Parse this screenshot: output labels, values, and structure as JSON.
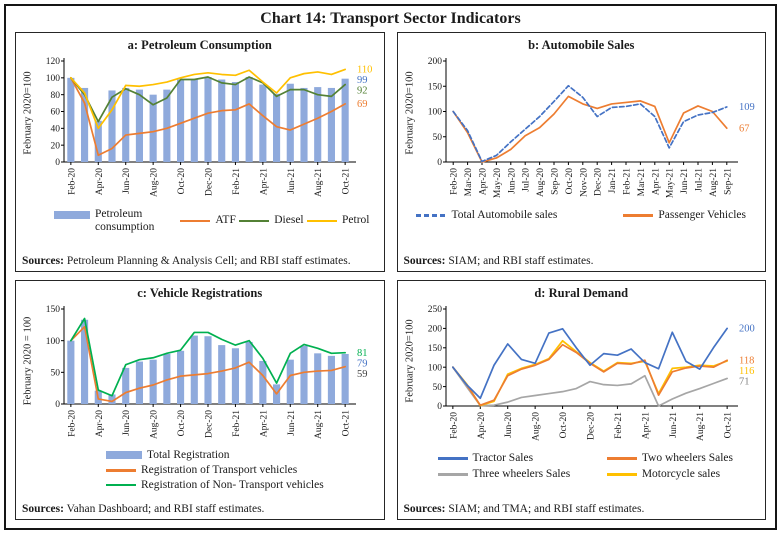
{
  "figure": {
    "title": "Chart 14: Transport Sector Indicators"
  },
  "chart_data": [
    {
      "id": "a",
      "type": "bar+line",
      "title": "a: Petroleum Consumption",
      "ylabel": "February 2020=100",
      "ylim": [
        0,
        120
      ],
      "ystep": 20,
      "xtick_step": 2,
      "legend_layout": "lay-a",
      "legend_order": [
        0,
        1,
        2,
        3
      ],
      "categories": [
        "Feb-20",
        "Mar-20",
        "Apr-20",
        "May-20",
        "Jun-20",
        "Jul-20",
        "Aug-20",
        "Sep-20",
        "Oct-20",
        "Nov-20",
        "Dec-20",
        "Jan-21",
        "Feb-21",
        "Mar-21",
        "Apr-21",
        "May-21",
        "Jun-21",
        "Jul-21",
        "Aug-21",
        "Sep-21",
        "Oct-21"
      ],
      "series": [
        {
          "name": "Petroleum consumption",
          "type": "bar",
          "color": "#8FAADC",
          "end_label": "99",
          "end_label_color": "#4472C4",
          "values": [
            100,
            88,
            49,
            85,
            88,
            86,
            80,
            86,
            98,
            98,
            101,
            98,
            95,
            101,
            92,
            81,
            93,
            88,
            89,
            88,
            99
          ]
        },
        {
          "name": "ATF",
          "type": "line",
          "color": "#ED7D31",
          "end_label": "69",
          "values": [
            100,
            70,
            8,
            16,
            32,
            34,
            36,
            40,
            46,
            52,
            58,
            61,
            62,
            69,
            55,
            42,
            38,
            45,
            52,
            60,
            69
          ]
        },
        {
          "name": "Diesel",
          "type": "line",
          "color": "#538135",
          "end_label": "92",
          "values": [
            100,
            80,
            48,
            77,
            87,
            80,
            68,
            76,
            98,
            98,
            101,
            94,
            92,
            101,
            94,
            78,
            86,
            86,
            80,
            78,
            92
          ]
        },
        {
          "name": "Petrol",
          "type": "line",
          "color": "#FFC000",
          "end_label": "110",
          "values": [
            100,
            82,
            40,
            62,
            91,
            90,
            92,
            95,
            100,
            104,
            106,
            104,
            103,
            109,
            95,
            82,
            100,
            105,
            107,
            104,
            110
          ]
        }
      ],
      "sources_label": "Sources:",
      "sources": "Petroleum Planning & Analysis Cell; and RBI staff estimates."
    },
    {
      "id": "b",
      "type": "line",
      "title": "b: Automobile Sales",
      "ylabel": "February 2020=100",
      "ylim": [
        0,
        200
      ],
      "ystep": 50,
      "xtick_step": 1,
      "legend_layout": "lay-b",
      "legend_order": [
        1,
        0
      ],
      "categories": [
        "Feb-20",
        "Mar-20",
        "Apr-20",
        "May-20",
        "Jun-20",
        "Jul-20",
        "Aug-20",
        "Sep-20",
        "Oct-20",
        "Nov-20",
        "Dec-20",
        "Jan-21",
        "Feb-21",
        "Mar-21",
        "Apr-21",
        "May-21",
        "Jun-21",
        "Jul-21",
        "Aug-21",
        "Sep-21"
      ],
      "series": [
        {
          "name": "Passenger Vehicles",
          "type": "line",
          "color": "#ED7D31",
          "end_label": "67",
          "values": [
            100,
            58,
            0,
            8,
            25,
            52,
            68,
            95,
            130,
            115,
            106,
            115,
            118,
            121,
            110,
            38,
            97,
            111,
            100,
            67
          ]
        },
        {
          "name": "Total Automobile sales",
          "type": "line",
          "color": "#4472C4",
          "dash": true,
          "end_label": "109",
          "values": [
            100,
            62,
            1,
            13,
            40,
            65,
            90,
            120,
            151,
            128,
            90,
            108,
            110,
            115,
            90,
            28,
            80,
            93,
            98,
            109
          ]
        }
      ],
      "sources_label": "Sources:",
      "sources": "SIAM; and RBI staff estimates."
    },
    {
      "id": "c",
      "type": "bar+line",
      "title": "c: Vehicle Registrations",
      "ylabel": "February 2020 = 100",
      "ylim": [
        0,
        150
      ],
      "ystep": 50,
      "xtick_step": 2,
      "legend_layout": "lay-c",
      "legend_order": [
        0,
        1,
        2
      ],
      "categories": [
        "Feb-20",
        "Mar-20",
        "Apr-20",
        "May-20",
        "Jun-20",
        "Jul-20",
        "Aug-20",
        "Sep-20",
        "Oct-20",
        "Nov-20",
        "Dec-20",
        "Jan-21",
        "Feb-21",
        "Mar-21",
        "Apr-21",
        "May-21",
        "Jun-21",
        "Jul-21",
        "Aug-21",
        "Sep-21",
        "Oct-21"
      ],
      "series": [
        {
          "name": "Total Registration",
          "type": "bar",
          "color": "#8FAADC",
          "end_label": "79",
          "end_label_color": "#4472C4",
          "values": [
            100,
            133,
            21,
            15,
            57,
            67,
            70,
            79,
            84,
            108,
            107,
            93,
            88,
            98,
            68,
            31,
            70,
            92,
            80,
            76,
            79
          ]
        },
        {
          "name": "Registration of Transport vehicles",
          "type": "line",
          "color": "#ED7D31",
          "end_label": "59",
          "end_label_color": "#404040",
          "values": [
            100,
            122,
            8,
            4,
            18,
            25,
            30,
            38,
            44,
            46,
            48,
            52,
            57,
            66,
            45,
            16,
            45,
            50,
            52,
            53,
            59
          ]
        },
        {
          "name": "Registration of Non- Transport vehicles",
          "type": "line",
          "color": "#00B050",
          "end_label": "81",
          "values": [
            100,
            135,
            22,
            13,
            62,
            70,
            73,
            80,
            85,
            113,
            113,
            102,
            93,
            100,
            72,
            33,
            80,
            94,
            88,
            80,
            81
          ]
        }
      ],
      "sources_label": "Sources:",
      "sources": "Vahan Dashboard; and RBI staff estimates."
    },
    {
      "id": "d",
      "type": "line",
      "title": "d: Rural Demand",
      "ylabel": "February 2020=100",
      "ylim": [
        0,
        250
      ],
      "ystep": 50,
      "xtick_step": 2,
      "legend_layout": "lay-d",
      "legend_order": [
        3,
        2,
        0,
        1
      ],
      "categories": [
        "Feb-20",
        "Mar-20",
        "Apr-20",
        "May-20",
        "Jun-20",
        "Jul-20",
        "Aug-20",
        "Sep-20",
        "Oct-20",
        "Nov-20",
        "Dec-20",
        "Jan-21",
        "Feb-21",
        "Mar-21",
        "Apr-21",
        "May-21",
        "Jun-21",
        "Jul-21",
        "Aug-21",
        "Sep-21",
        "Oct-21"
      ],
      "series": [
        {
          "name": "Three wheelers Sales",
          "type": "line",
          "color": "#A6A6A6",
          "end_label": "71",
          "end_label_color": "#808080",
          "values": [
            100,
            50,
            1,
            2,
            10,
            22,
            27,
            32,
            37,
            45,
            63,
            55,
            53,
            57,
            78,
            0,
            18,
            33,
            45,
            58,
            71
          ]
        },
        {
          "name": "Motorcycle sales",
          "type": "line",
          "color": "#FFC000",
          "end_label": "116",
          "values": [
            100,
            57,
            1,
            12,
            82,
            97,
            107,
            122,
            168,
            140,
            112,
            90,
            112,
            110,
            115,
            32,
            97,
            100,
            105,
            103,
            116
          ]
        },
        {
          "name": "Two wheelers Sales",
          "type": "line",
          "color": "#ED7D31",
          "end_label": "118",
          "values": [
            100,
            55,
            2,
            15,
            78,
            95,
            105,
            120,
            158,
            138,
            110,
            88,
            110,
            108,
            118,
            28,
            88,
            98,
            103,
            100,
            118
          ]
        },
        {
          "name": "Tractor Sales",
          "type": "line",
          "color": "#4472C4",
          "end_label": "200",
          "values": [
            100,
            55,
            20,
            105,
            160,
            120,
            110,
            188,
            199,
            150,
            105,
            135,
            131,
            147,
            112,
            96,
            190,
            115,
            95,
            150,
            200
          ]
        }
      ],
      "sources_label": "Sources:",
      "sources": "SIAM; and TMA; and RBI staff estimates."
    }
  ]
}
